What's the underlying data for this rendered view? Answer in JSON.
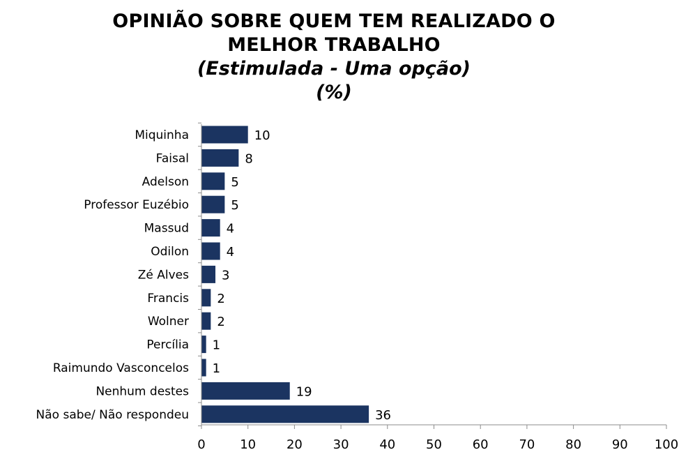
{
  "chart_data": {
    "type": "bar",
    "orientation": "horizontal",
    "title": "OPINIÃO SOBRE QUEM TEM REALIZADO O MELHOR TRABALHO",
    "title_lines": [
      "OPINIÃO SOBRE QUEM TEM REALIZADO O",
      "MELHOR TRABALHO"
    ],
    "subtitle_lines": [
      "(Estimulada - Uma opção)",
      "(%)"
    ],
    "categories": [
      "Miquinha",
      "Faisal",
      "Adelson",
      "Professor Euzébio",
      "Massud",
      "Odilon",
      "Zé Alves",
      "Francis",
      "Wolner",
      "Percília",
      "Raimundo Vasconcelos",
      "Nenhum destes",
      "Não sabe/ Não respondeu"
    ],
    "values": [
      10,
      8,
      5,
      5,
      4,
      4,
      3,
      2,
      2,
      1,
      1,
      19,
      36
    ],
    "xlim": [
      0,
      100
    ],
    "xticks": [
      0,
      10,
      20,
      30,
      40,
      50,
      60,
      70,
      80,
      90,
      100
    ],
    "bar_color": "#1b3461",
    "grid": false,
    "legend": "none"
  }
}
